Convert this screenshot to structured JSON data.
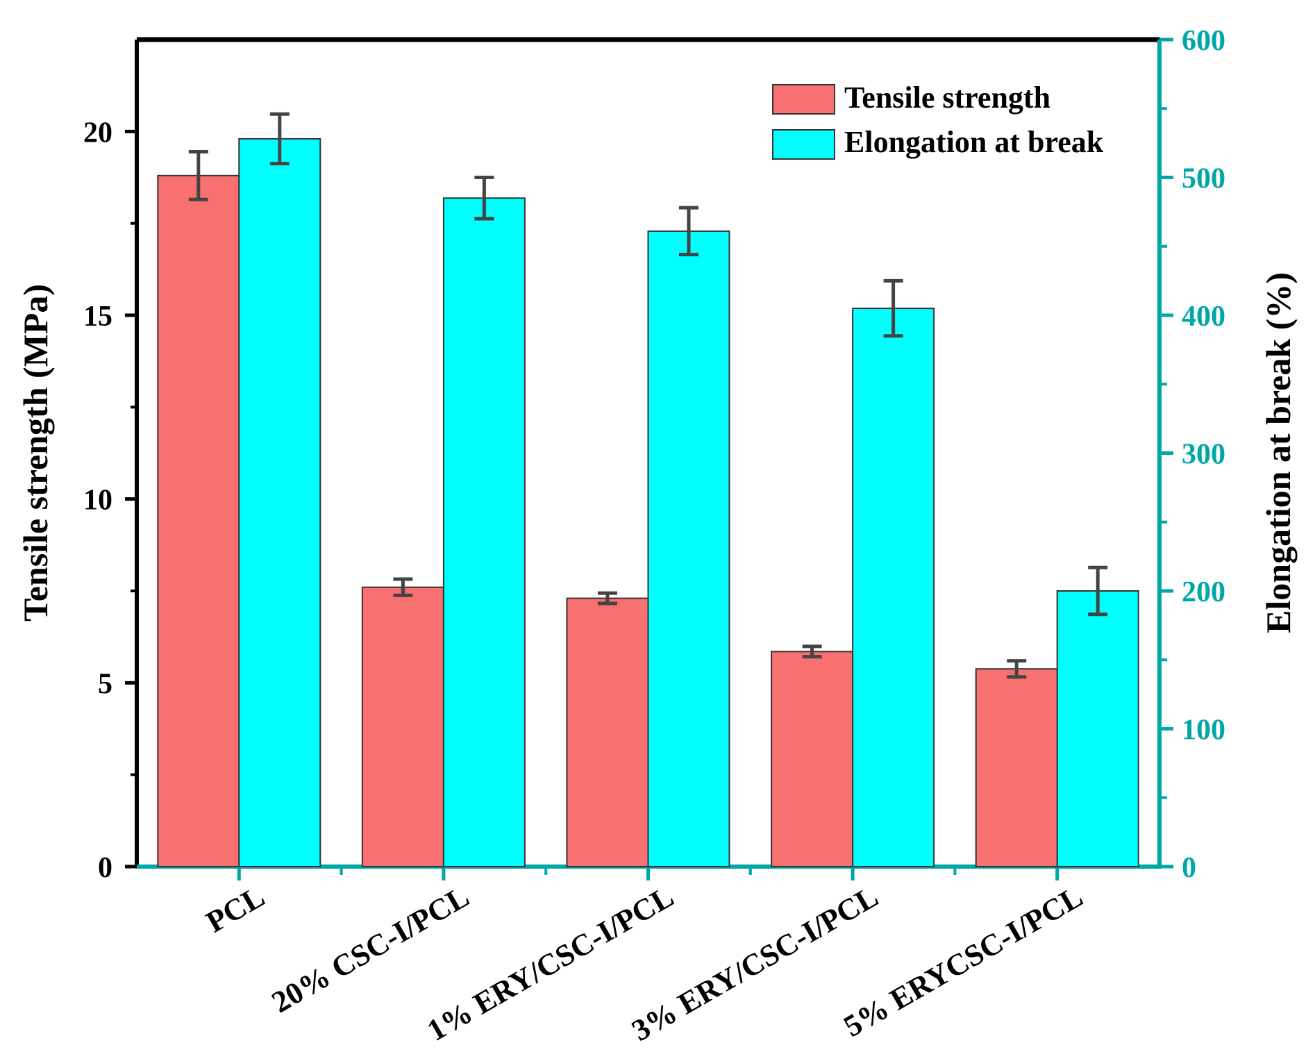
{
  "chart_data": {
    "type": "bar",
    "categories": [
      "PCL",
      "20% CSC-I/PCL",
      "1% ERY/CSC-I/PCL",
      "3% ERY/CSC-I/PCL",
      "5% ERYCSC-I/PCL"
    ],
    "series": [
      {
        "name": "Tensile strength",
        "axis": "left",
        "color": "#f87070",
        "values": [
          18.8,
          7.6,
          7.3,
          5.85,
          5.38
        ],
        "errors": [
          0.65,
          0.22,
          0.14,
          0.14,
          0.22
        ]
      },
      {
        "name": "Elongation at break",
        "axis": "right",
        "color": "#00ffff",
        "values": [
          528,
          485,
          461,
          405,
          200
        ],
        "errors": [
          18,
          15,
          17,
          20,
          17
        ]
      }
    ],
    "left_axis": {
      "label": "Tensile strength (MPa)",
      "ylim": [
        0,
        22.5
      ],
      "ticks": [
        0,
        5,
        10,
        15,
        20
      ],
      "tick_labels": [
        "0",
        "5",
        "10",
        "15",
        "20"
      ],
      "color": "#000000"
    },
    "right_axis": {
      "label": "Elongation at break (%)",
      "ylim": [
        0,
        600
      ],
      "ticks": [
        0,
        100,
        200,
        300,
        400,
        500,
        600
      ],
      "tick_labels": [
        "0",
        "100",
        "200",
        "300",
        "400",
        "500",
        "600"
      ],
      "color": "#00a7a7"
    },
    "xlabel": "",
    "legend": {
      "position": "top-right",
      "items": [
        "Tensile strength",
        "Elongation at break"
      ]
    },
    "grid": false
  }
}
